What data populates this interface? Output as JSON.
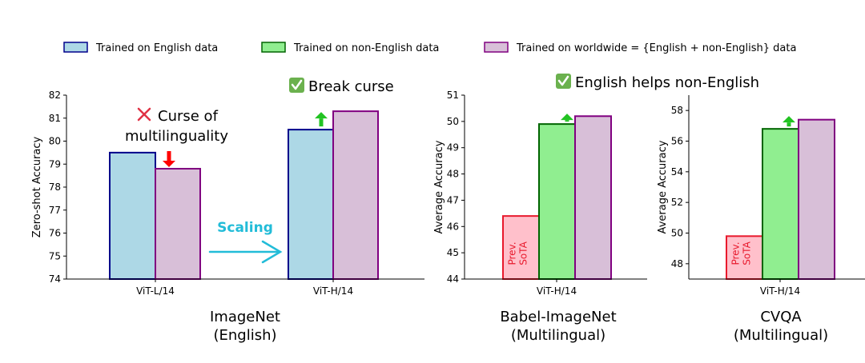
{
  "legend": [
    {
      "label": "Trained on English data",
      "fill": "#add8e6",
      "stroke": "#00008b"
    },
    {
      "label": "Trained on non-English data",
      "fill": "#90ee90",
      "stroke": "#006400"
    },
    {
      "label": "Trained on worldwide = {English + non-English} data",
      "fill": "#d8bfd8",
      "stroke": "#800080"
    }
  ],
  "labels": {
    "curse_line1": "Curse of",
    "curse_line2": "multilinguality",
    "break_curse": "Break curse",
    "english_helps": "English helps non-English",
    "scaling": "Scaling",
    "prev_sota_line1": "Prev.",
    "prev_sota_line2": "SoTA"
  },
  "colors": {
    "english": "#add8e6",
    "english_edge": "#00008b",
    "non_english": "#90ee90",
    "non_english_edge": "#006400",
    "worldwide": "#d8bfd8",
    "worldwide_edge": "#800080",
    "prev_sota": "#ffc0cb",
    "prev_sota_edge": "#e8192c",
    "down_arrow": "#ff0000",
    "up_arrow": "#22c322",
    "scaling": "#22bcd8",
    "check": "#6bb14e",
    "cross": "#e03245"
  },
  "chart_data": [
    {
      "type": "bar",
      "title": "ImageNet",
      "subtitle": "(English)",
      "xlabel": "",
      "ylabel": "Zero-shot Accuracy",
      "ylim": [
        74,
        82
      ],
      "yticks": [
        74,
        75,
        76,
        77,
        78,
        79,
        80,
        81,
        82
      ],
      "categories": [
        "ViT-L/14",
        "ViT-H/14"
      ],
      "series": [
        {
          "name": "Trained on English data",
          "values": [
            79.5,
            80.5
          ]
        },
        {
          "name": "Trained on worldwide = {English + non-English} data",
          "values": [
            78.8,
            81.3
          ]
        }
      ]
    },
    {
      "type": "bar",
      "title": "Babel-ImageNet",
      "subtitle": "(Multilingual)",
      "xlabel": "",
      "ylabel": "Average Accuracy",
      "ylim": [
        44,
        51
      ],
      "yticks": [
        44,
        45,
        46,
        47,
        48,
        49,
        50,
        51
      ],
      "categories": [
        "ViT-H/14"
      ],
      "series": [
        {
          "name": "Prev. SoTA",
          "values": [
            46.4
          ]
        },
        {
          "name": "Trained on non-English data",
          "values": [
            49.9
          ]
        },
        {
          "name": "Trained on worldwide = {English + non-English} data",
          "values": [
            50.2
          ]
        }
      ]
    },
    {
      "type": "bar",
      "title": "CVQA",
      "subtitle": "(Multilingual)",
      "xlabel": "",
      "ylabel": "Average Accuracy",
      "ylim": [
        47,
        59
      ],
      "yticks": [
        48,
        50,
        52,
        54,
        56,
        58
      ],
      "categories": [
        "ViT-H/14"
      ],
      "series": [
        {
          "name": "Prev. SoTA",
          "values": [
            49.8
          ]
        },
        {
          "name": "Trained on non-English data",
          "values": [
            56.8
          ]
        },
        {
          "name": "Trained on worldwide = {English + non-English} data",
          "values": [
            57.4
          ]
        }
      ]
    }
  ]
}
